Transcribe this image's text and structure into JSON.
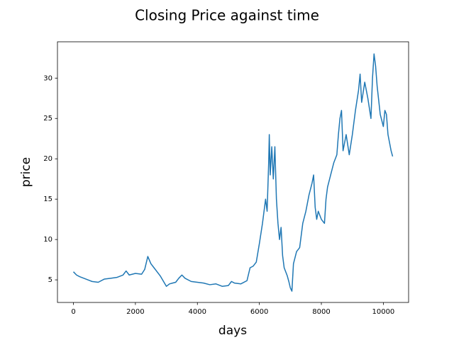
{
  "chart_data": {
    "type": "line",
    "title": "Closing Price against time",
    "x_label": "days",
    "y_label": "price",
    "x": [
      0,
      100,
      200,
      400,
      600,
      800,
      1000,
      1200,
      1400,
      1600,
      1700,
      1800,
      2000,
      2200,
      2300,
      2400,
      2500,
      2600,
      2800,
      3000,
      3100,
      3200,
      3300,
      3400,
      3500,
      3600,
      3800,
      4000,
      4200,
      4400,
      4600,
      4800,
      5000,
      5100,
      5200,
      5400,
      5600,
      5700,
      5800,
      5900,
      6000,
      6100,
      6200,
      6250,
      6300,
      6320,
      6350,
      6400,
      6450,
      6500,
      6550,
      6600,
      6650,
      6700,
      6750,
      6800,
      6900,
      6950,
      7000,
      7050,
      7100,
      7200,
      7300,
      7400,
      7500,
      7600,
      7700,
      7750,
      7800,
      7850,
      7900,
      8000,
      8100,
      8150,
      8200,
      8300,
      8400,
      8500,
      8550,
      8600,
      8650,
      8700,
      8800,
      8900,
      9000,
      9100,
      9200,
      9250,
      9300,
      9400,
      9500,
      9600,
      9650,
      9700,
      9750,
      9800,
      9900,
      10000,
      10050,
      10100,
      10150,
      10200,
      10250,
      10300
    ],
    "series": [
      {
        "color": "#1f77b4",
        "values": [
          6.0,
          5.6,
          5.4,
          5.1,
          4.8,
          4.7,
          5.1,
          5.2,
          5.3,
          5.6,
          6.1,
          5.6,
          5.8,
          5.7,
          6.3,
          7.9,
          7.0,
          6.5,
          5.5,
          4.2,
          4.5,
          4.6,
          4.7,
          5.2,
          5.6,
          5.2,
          4.8,
          4.7,
          4.6,
          4.4,
          4.5,
          4.2,
          4.3,
          4.8,
          4.6,
          4.5,
          4.9,
          6.5,
          6.7,
          7.2,
          9.5,
          12.0,
          15.0,
          13.5,
          19.5,
          23.0,
          18.0,
          21.5,
          17.5,
          21.5,
          15.0,
          12.0,
          10.0,
          11.5,
          8.0,
          6.5,
          5.5,
          4.8,
          4.0,
          3.6,
          7.0,
          8.5,
          9.0,
          12.0,
          13.5,
          15.5,
          17.0,
          18.0,
          14.0,
          12.5,
          13.5,
          12.5,
          12.0,
          15.0,
          16.5,
          18.0,
          19.5,
          20.5,
          23.0,
          25.0,
          26.0,
          21.0,
          23.0,
          20.5,
          23.0,
          26.0,
          28.5,
          30.5,
          27.0,
          29.5,
          27.5,
          25.0,
          30.0,
          33.0,
          31.5,
          29.0,
          25.5,
          24.0,
          26.0,
          25.5,
          23.0,
          22.0,
          21.0,
          20.3
        ]
      }
    ],
    "xlim": [
      -515,
      10815
    ],
    "ylim": [
      2.2,
      34.5
    ],
    "xticks": [
      0,
      2000,
      4000,
      6000,
      8000,
      10000
    ],
    "yticks": [
      5,
      10,
      15,
      20,
      25,
      30
    ]
  }
}
